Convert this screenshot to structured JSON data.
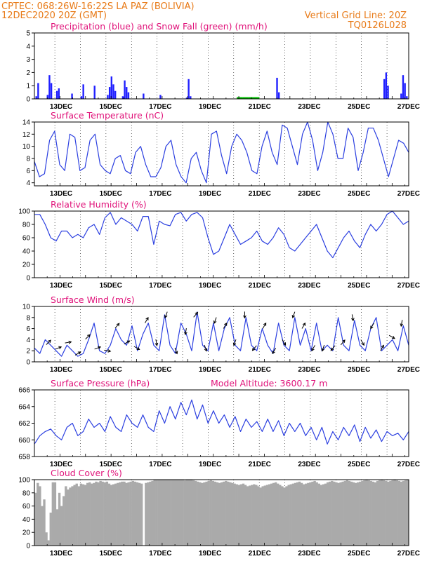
{
  "header": {
    "line1_left": "CPTEC:   068:26W-16:22S   LA PAZ (BOLIVIA)",
    "line2_left": "12DEC2020 20Z (GMT)",
    "line2_right": "Vertical Grid Line: 20Z",
    "code": "TQ0126L028"
  },
  "x_tick_labels": [
    "13DEC",
    "15DEC",
    "17DEC",
    "19DEC",
    "21DEC",
    "23DEC",
    "25DEC",
    "27DEC"
  ],
  "colors": {
    "precip": "#2020ff",
    "snow": "#00c000",
    "line": "#2b3fe0",
    "wind_arrow": "#000000",
    "cloud": "#aaaaaa",
    "header": "#e87a17",
    "panel_title": "#e0137a"
  },
  "chart_data": [
    {
      "type": "bar",
      "title": "Precipitation (blue) and Snow Fall (green) (mm/h)",
      "ylim": [
        0,
        5
      ],
      "yticks": [
        0,
        1,
        2,
        3,
        4,
        5
      ],
      "grid": "vertical dashed at 20Z",
      "x_start": "12DEC2020 20Z",
      "x_step_hours": 3,
      "series": [
        {
          "name": "Precipitation",
          "color": "blue",
          "values": [
            0,
            0.2,
            1.2,
            0,
            0,
            0,
            0,
            0.3,
            1.8,
            1.2,
            0,
            0,
            0.6,
            0.8,
            0,
            0,
            0,
            0,
            0,
            0,
            0.4,
            0,
            0,
            0,
            0,
            0.2,
            1.1,
            0,
            0,
            0,
            0,
            0,
            1.0,
            0,
            0,
            0,
            0,
            0,
            0,
            0.3,
            0.9,
            1.7,
            1.1,
            0.6,
            0,
            0,
            0,
            0.2,
            1.4,
            0.9,
            0.5,
            0,
            0,
            0,
            0,
            0,
            0,
            0,
            0.4,
            0,
            0,
            0,
            0,
            0,
            0,
            0,
            0,
            0.3,
            0,
            0,
            0,
            0,
            0,
            0,
            0,
            0,
            0,
            0,
            0,
            0,
            0,
            0.1,
            1.5,
            0.2,
            0,
            0,
            0,
            0,
            0,
            0,
            0,
            0,
            0,
            0,
            0,
            0,
            0,
            0,
            0,
            0,
            0,
            0,
            0,
            0,
            0,
            0,
            0,
            0,
            0,
            0,
            0,
            0,
            0,
            0,
            0,
            0,
            0,
            0,
            0,
            0,
            0,
            0,
            0,
            0,
            0,
            0,
            0,
            0,
            0,
            1.6,
            0.5,
            0,
            0,
            0,
            0,
            0,
            0,
            0,
            0,
            0,
            0,
            0,
            0,
            0,
            0,
            0,
            0,
            0,
            0,
            0,
            0,
            0,
            0,
            0,
            0,
            0,
            0,
            0,
            0,
            0,
            0,
            0,
            0,
            0,
            0,
            0,
            0,
            0,
            0,
            0,
            0,
            0,
            0,
            0,
            0,
            0,
            0,
            0,
            0,
            0,
            0,
            0,
            0,
            0,
            0,
            0,
            1.5,
            2.0,
            1.0,
            0,
            0,
            0,
            0,
            0,
            0,
            0.4,
            1.8,
            1.2,
            0.2,
            0
          ]
        },
        {
          "name": "Snow Fall",
          "color": "green",
          "values": [
            0,
            0,
            0,
            0,
            0,
            0,
            0,
            0,
            0,
            0,
            0,
            0,
            0,
            0,
            0,
            0,
            0,
            0,
            0,
            0,
            0,
            0,
            0,
            0,
            0,
            0,
            0,
            0,
            0,
            0,
            0,
            0,
            0,
            0,
            0,
            0,
            0,
            0,
            0,
            0,
            0,
            0,
            0,
            0,
            0,
            0,
            0,
            0,
            0,
            0,
            0,
            0,
            0,
            0,
            0,
            0,
            0,
            0,
            0,
            0,
            0,
            0,
            0,
            0,
            0,
            0,
            0,
            0,
            0,
            0,
            0,
            0,
            0,
            0,
            0,
            0,
            0,
            0,
            0,
            0,
            0,
            0,
            0,
            0,
            0,
            0,
            0,
            0,
            0,
            0,
            0,
            0,
            0,
            0,
            0,
            0,
            0,
            0,
            0,
            0,
            0,
            0,
            0,
            0,
            0,
            0,
            0,
            0,
            0.05,
            0.05,
            0.05,
            0.05,
            0.05,
            0.05,
            0.05,
            0.05,
            0.05,
            0.05,
            0.05,
            0.05,
            0,
            0,
            0,
            0,
            0,
            0,
            0,
            0,
            0,
            0,
            0,
            0,
            0,
            0,
            0,
            0,
            0,
            0,
            0,
            0,
            0,
            0,
            0,
            0,
            0,
            0,
            0,
            0,
            0,
            0,
            0,
            0,
            0,
            0,
            0,
            0,
            0,
            0,
            0,
            0,
            0,
            0,
            0,
            0,
            0,
            0,
            0,
            0,
            0,
            0,
            0,
            0,
            0,
            0,
            0,
            0,
            0,
            0,
            0,
            0,
            0,
            0,
            0,
            0,
            0,
            0,
            0
          ]
        }
      ]
    },
    {
      "type": "line",
      "title": "Surface Temperature (nC)",
      "ylim": [
        3.5,
        14
      ],
      "yticks": [
        4,
        6,
        8,
        10,
        12,
        14
      ],
      "x_start": "12DEC2020 20Z",
      "x_step_hours": 6,
      "values": [
        7.5,
        5,
        5.5,
        11,
        12.5,
        7,
        6,
        12,
        11.5,
        6,
        6.5,
        11,
        12,
        7,
        6,
        5.5,
        8,
        8.5,
        6,
        5.5,
        9,
        10,
        7,
        5,
        5,
        6.5,
        10,
        11,
        7,
        5,
        4,
        8,
        9,
        6,
        4,
        12,
        12.5,
        8.5,
        5.5,
        10,
        12,
        11,
        9,
        6,
        5.5,
        10,
        12.5,
        9,
        7,
        13.5,
        13,
        10,
        7,
        12,
        14,
        11,
        6,
        9,
        14,
        12,
        8,
        8,
        13,
        11.5,
        6,
        9,
        13,
        13,
        11,
        8,
        5,
        8,
        11,
        10.5,
        9
      ]
    },
    {
      "type": "line",
      "title": "Relative Humidity (%)",
      "ylim": [
        0,
        100
      ],
      "yticks": [
        0,
        20,
        40,
        60,
        80,
        100
      ],
      "x_start": "12DEC2020 20Z",
      "x_step_hours": 6,
      "values": [
        95,
        95,
        80,
        60,
        55,
        70,
        70,
        60,
        65,
        60,
        75,
        80,
        65,
        90,
        98,
        80,
        90,
        85,
        80,
        70,
        92,
        92,
        50,
        85,
        80,
        78,
        95,
        98,
        85,
        95,
        98,
        90,
        60,
        35,
        40,
        60,
        80,
        65,
        50,
        55,
        60,
        70,
        55,
        50,
        60,
        75,
        65,
        45,
        40,
        50,
        60,
        70,
        80,
        60,
        40,
        30,
        45,
        60,
        70,
        55,
        45,
        65,
        80,
        70,
        80,
        95,
        100,
        90,
        80,
        85
      ]
    },
    {
      "type": "line",
      "title": "Surface Wind (m/s)",
      "ylim": [
        0,
        10
      ],
      "yticks": [
        0,
        2,
        4,
        6,
        8,
        10
      ],
      "x_start": "12DEC2020 20Z",
      "x_step_hours": 6,
      "values": [
        2.5,
        1.5,
        4,
        3,
        2,
        1,
        3,
        2,
        1,
        1.5,
        4,
        7,
        2,
        1.5,
        3,
        6,
        4,
        3,
        6.5,
        2,
        5,
        7,
        3,
        2,
        8.5,
        3,
        1.5,
        7,
        5,
        2,
        9,
        3,
        2,
        7,
        2,
        6,
        8,
        3,
        2,
        8,
        3,
        2,
        6,
        3,
        1.5,
        7,
        3,
        2,
        8,
        3,
        6,
        2,
        7,
        2,
        3,
        2,
        8,
        3,
        2,
        7.5,
        3,
        2,
        6,
        8,
        2,
        3,
        4,
        2,
        6.5,
        3
      ],
      "arrows": [
        45,
        70,
        80,
        60,
        45,
        70,
        100,
        40,
        60,
        120,
        30,
        170,
        200,
        160,
        190,
        40,
        160,
        200,
        30,
        200,
        180,
        220,
        30,
        210,
        150,
        200,
        30,
        210,
        200,
        220,
        40,
        170,
        150,
        210,
        30,
        120,
        190
      ]
    },
    {
      "type": "line",
      "title": "Surface Pressure (hPa)",
      "annotation": "Model Altitude: 3600.17 m",
      "ylim": [
        658,
        666
      ],
      "yticks": [
        658,
        660,
        662,
        664,
        666
      ],
      "x_start": "12DEC2020 20Z",
      "x_step_hours": 6,
      "values": [
        659.5,
        660.5,
        661,
        661.3,
        660.5,
        660,
        661.5,
        662,
        660.5,
        661,
        662.5,
        661.5,
        662,
        661,
        662.8,
        661.5,
        661,
        663,
        662,
        661.5,
        663,
        661.5,
        661,
        663.5,
        662,
        664,
        662.5,
        664.5,
        663,
        664.8,
        662.5,
        664.2,
        662,
        663.5,
        662,
        663,
        661.5,
        662.8,
        661,
        662.5,
        661.5,
        662.2,
        661,
        662.5,
        661,
        662.3,
        660.5,
        662,
        661,
        662,
        660.5,
        661.5,
        660,
        661.5,
        659.5,
        661,
        660,
        661.5,
        660.5,
        661.8,
        659.8,
        661.5,
        660.2,
        661.2,
        659.8,
        661,
        660.5,
        660.8,
        660,
        661
      ]
    },
    {
      "type": "area",
      "title": "Cloud Cover (%)",
      "ylim": [
        0,
        100
      ],
      "yticks": [
        0,
        20,
        40,
        60,
        80,
        100
      ],
      "x_start": "12DEC2020 20Z",
      "x_step_hours": 3,
      "values": [
        80,
        95,
        90,
        60,
        70,
        20,
        8,
        50,
        96,
        96,
        55,
        80,
        60,
        75,
        90,
        85,
        88,
        90,
        92,
        94,
        90,
        94,
        93,
        92,
        95,
        96,
        94,
        95,
        97,
        96,
        98,
        97,
        96,
        97,
        94,
        92,
        93,
        94,
        95,
        96,
        97,
        97,
        95,
        96,
        97,
        98,
        97,
        96,
        95,
        94,
        0,
        95,
        96,
        97,
        98,
        100,
        100,
        100,
        100,
        100,
        100,
        100,
        100,
        100,
        100,
        100,
        100,
        100,
        100,
        99,
        100,
        100,
        100,
        99,
        98,
        97,
        96,
        95,
        96,
        97,
        98,
        99,
        98,
        97,
        96,
        95,
        96,
        97,
        98,
        97,
        96,
        95,
        94,
        93,
        92,
        93,
        94,
        92,
        90,
        91,
        92,
        93,
        92,
        90,
        88,
        90,
        91,
        92,
        93,
        94,
        95,
        96,
        94,
        92,
        90,
        88,
        90,
        92,
        93,
        94,
        95,
        96,
        97,
        95,
        93,
        94,
        95,
        96,
        97,
        98,
        96,
        94,
        92,
        93,
        94,
        96,
        97,
        98,
        97,
        96,
        95,
        96,
        97,
        98,
        99,
        98,
        97,
        96,
        95,
        96,
        97,
        98,
        99,
        100,
        99,
        98,
        97,
        96,
        98,
        99,
        100,
        99,
        98,
        97,
        98,
        99,
        100,
        99,
        98,
        97,
        98,
        99,
        100
      ]
    }
  ]
}
